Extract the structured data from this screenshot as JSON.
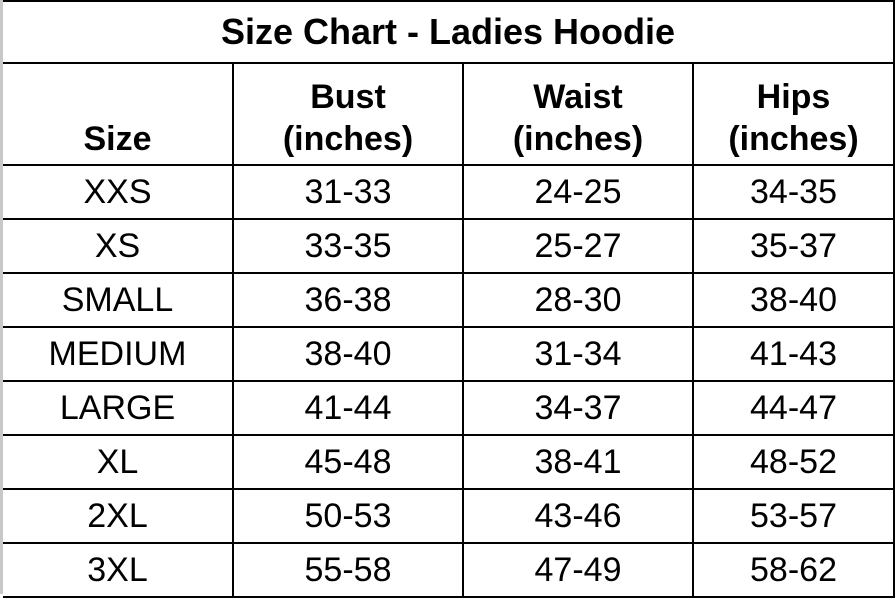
{
  "title": "Size Chart - Ladies Hoodie",
  "headers": [
    {
      "line1": "",
      "line2": "Size"
    },
    {
      "line1": "Bust",
      "line2": "(inches)"
    },
    {
      "line1": "Waist",
      "line2": "(inches)"
    },
    {
      "line1": "Hips",
      "line2": "(inches)"
    }
  ],
  "rows": [
    [
      "XXS",
      "31-33",
      "24-25",
      "34-35"
    ],
    [
      "XS",
      "33-35",
      "25-27",
      "35-37"
    ],
    [
      "SMALL",
      "36-38",
      "28-30",
      "38-40"
    ],
    [
      "MEDIUM",
      "38-40",
      "31-34",
      "41-43"
    ],
    [
      "LARGE",
      "41-44",
      "34-37",
      "44-47"
    ],
    [
      "XL",
      "45-48",
      "38-41",
      "48-52"
    ],
    [
      "2XL",
      "50-53",
      "43-46",
      "53-57"
    ],
    [
      "3XL",
      "55-58",
      "47-49",
      "58-62"
    ]
  ]
}
